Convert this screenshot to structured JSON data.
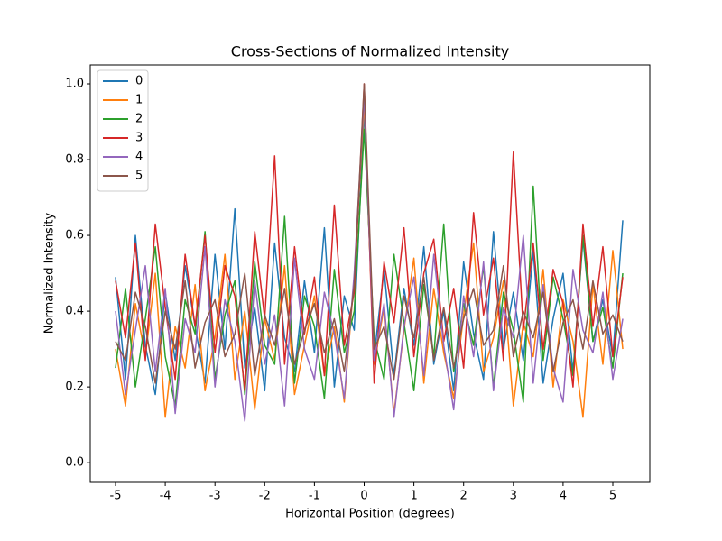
{
  "chart_data": {
    "type": "line",
    "title": "Cross-Sections of Normalized Intensity",
    "x_label": "Horizontal Position (degrees)",
    "y_label": "Normalized Intensity",
    "x": [
      -5.0,
      -4.8,
      -4.6,
      -4.4,
      -4.2,
      -4.0,
      -3.8,
      -3.6,
      -3.4,
      -3.2,
      -3.0,
      -2.8,
      -2.6,
      -2.4,
      -2.2,
      -2.0,
      -1.8,
      -1.6,
      -1.4,
      -1.2,
      -1.0,
      -0.8,
      -0.6,
      -0.4,
      -0.2,
      0.0,
      0.2,
      0.4,
      0.6,
      0.8,
      1.0,
      1.2,
      1.4,
      1.6,
      1.8,
      2.0,
      2.2,
      2.4,
      2.6,
      2.8,
      3.0,
      3.2,
      3.4,
      3.6,
      3.8,
      4.0,
      4.2,
      4.4,
      4.6,
      4.8,
      5.0,
      5.2
    ],
    "series": [
      {
        "name": "0",
        "color": "#1f77b4",
        "values": [
          0.49,
          0.22,
          0.6,
          0.31,
          0.18,
          0.45,
          0.27,
          0.52,
          0.36,
          0.21,
          0.55,
          0.3,
          0.67,
          0.25,
          0.41,
          0.19,
          0.58,
          0.33,
          0.24,
          0.48,
          0.29,
          0.62,
          0.2,
          0.44,
          0.35,
          0.93,
          0.28,
          0.51,
          0.23,
          0.46,
          0.31,
          0.57,
          0.26,
          0.4,
          0.19,
          0.53,
          0.34,
          0.22,
          0.61,
          0.3,
          0.45,
          0.27,
          0.56,
          0.21,
          0.38,
          0.5,
          0.24,
          0.59,
          0.32,
          0.43,
          0.28,
          0.64
        ]
      },
      {
        "name": "1",
        "color": "#ff7f0e",
        "values": [
          0.3,
          0.15,
          0.42,
          0.28,
          0.5,
          0.12,
          0.36,
          0.25,
          0.47,
          0.19,
          0.33,
          0.55,
          0.22,
          0.4,
          0.14,
          0.38,
          0.27,
          0.52,
          0.18,
          0.31,
          0.44,
          0.23,
          0.36,
          0.16,
          0.49,
          0.95,
          0.26,
          0.41,
          0.13,
          0.35,
          0.54,
          0.21,
          0.46,
          0.29,
          0.17,
          0.39,
          0.58,
          0.24,
          0.33,
          0.48,
          0.15,
          0.37,
          0.28,
          0.51,
          0.2,
          0.43,
          0.32,
          0.12,
          0.47,
          0.26,
          0.56,
          0.3
        ]
      },
      {
        "name": "2",
        "color": "#2ca02c",
        "values": [
          0.25,
          0.46,
          0.2,
          0.38,
          0.57,
          0.28,
          0.15,
          0.43,
          0.34,
          0.61,
          0.22,
          0.39,
          0.48,
          0.18,
          0.53,
          0.31,
          0.26,
          0.65,
          0.21,
          0.44,
          0.36,
          0.17,
          0.51,
          0.29,
          0.4,
          0.88,
          0.33,
          0.22,
          0.55,
          0.37,
          0.19,
          0.47,
          0.28,
          0.63,
          0.24,
          0.42,
          0.31,
          0.52,
          0.2,
          0.45,
          0.35,
          0.16,
          0.73,
          0.27,
          0.49,
          0.38,
          0.23,
          0.6,
          0.32,
          0.41,
          0.25,
          0.5
        ]
      },
      {
        "name": "3",
        "color": "#d62728",
        "values": [
          0.48,
          0.33,
          0.58,
          0.27,
          0.63,
          0.41,
          0.22,
          0.55,
          0.36,
          0.6,
          0.29,
          0.52,
          0.44,
          0.19,
          0.61,
          0.38,
          0.81,
          0.26,
          0.57,
          0.34,
          0.49,
          0.23,
          0.68,
          0.31,
          0.45,
          1.0,
          0.21,
          0.53,
          0.37,
          0.62,
          0.28,
          0.5,
          0.59,
          0.32,
          0.46,
          0.25,
          0.66,
          0.39,
          0.54,
          0.27,
          0.82,
          0.35,
          0.58,
          0.3,
          0.51,
          0.42,
          0.2,
          0.63,
          0.36,
          0.57,
          0.28,
          0.49
        ]
      },
      {
        "name": "4",
        "color": "#9467bd",
        "values": [
          0.4,
          0.18,
          0.35,
          0.52,
          0.24,
          0.46,
          0.13,
          0.38,
          0.29,
          0.57,
          0.2,
          0.43,
          0.32,
          0.11,
          0.48,
          0.26,
          0.39,
          0.15,
          0.54,
          0.3,
          0.22,
          0.45,
          0.34,
          0.17,
          0.5,
          0.97,
          0.27,
          0.42,
          0.12,
          0.36,
          0.49,
          0.23,
          0.55,
          0.31,
          0.14,
          0.44,
          0.28,
          0.53,
          0.19,
          0.41,
          0.33,
          0.6,
          0.21,
          0.47,
          0.25,
          0.16,
          0.51,
          0.35,
          0.29,
          0.45,
          0.22,
          0.38
        ]
      },
      {
        "name": "5",
        "color": "#8c564b",
        "values": [
          0.32,
          0.27,
          0.45,
          0.36,
          0.21,
          0.4,
          0.3,
          0.48,
          0.25,
          0.37,
          0.43,
          0.28,
          0.34,
          0.5,
          0.23,
          0.39,
          0.31,
          0.46,
          0.26,
          0.35,
          0.42,
          0.29,
          0.38,
          0.24,
          0.47,
          1.0,
          0.3,
          0.36,
          0.22,
          0.44,
          0.33,
          0.49,
          0.27,
          0.41,
          0.25,
          0.38,
          0.46,
          0.31,
          0.35,
          0.52,
          0.28,
          0.4,
          0.33,
          0.45,
          0.24,
          0.37,
          0.43,
          0.3,
          0.48,
          0.34,
          0.39,
          0.32
        ]
      }
    ],
    "xlim": [
      -5.508,
      5.744
    ],
    "ylim": [
      -0.052,
      1.05
    ],
    "xticks": [
      -5,
      -4,
      -3,
      -2,
      -1,
      0,
      1,
      2,
      3,
      4,
      5
    ],
    "yticks": [
      {
        "value": 0,
        "label": "0.0"
      },
      0.2,
      0.4,
      0.6,
      0.8,
      {
        "value": 1,
        "label": "1.0"
      }
    ],
    "legend": "upper left"
  }
}
